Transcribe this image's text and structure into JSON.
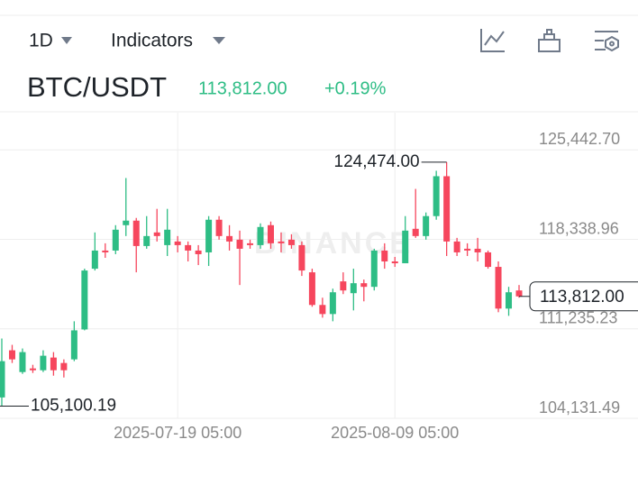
{
  "toolbar": {
    "interval": "1D",
    "indicators": "Indicators"
  },
  "chart_data": {
    "type": "candlestick",
    "title": "BTC/USDT",
    "change": "+0.19%",
    "last_price": {
      "value": 113812.0,
      "label": "113,812.00"
    },
    "watermark": "BINANCE",
    "up_color": "#2ebd85",
    "down_color": "#f6465d",
    "grid": true,
    "categories": [
      null,
      null,
      null,
      null,
      null,
      null,
      null,
      null,
      null,
      null,
      null,
      null,
      null,
      null,
      null,
      null,
      null,
      "2025-07-19 05:00",
      null,
      null,
      null,
      null,
      null,
      null,
      null,
      null,
      null,
      null,
      null,
      null,
      null,
      null,
      null,
      null,
      null,
      null,
      null,
      null,
      "2025-08-09 05:00",
      null,
      null,
      null,
      null,
      null,
      null,
      null,
      null,
      null,
      null,
      null,
      null
    ],
    "open": [
      105787,
      109531,
      107803,
      108091,
      107947,
      108955,
      108523,
      108811,
      111187,
      116011,
      117451,
      117451,
      119467,
      119827,
      117811,
      118891,
      117883,
      118171,
      117883,
      117451,
      117307,
      119899,
      118603,
      118315,
      118027,
      117883,
      119467,
      118171,
      118315,
      117883,
      115723,
      113131,
      112411,
      115003,
      114067,
      114859,
      114571,
      117451,
      116587,
      116443,
      119179,
      118603,
      120187,
      123355,
      118171,
      117595,
      117595,
      117307,
      116155,
      112843,
      114283
    ],
    "high": [
      110467,
      109963,
      109675,
      108379,
      109531,
      109387,
      108811,
      111835,
      116011,
      118891,
      118027,
      119467,
      123211,
      120043,
      120187,
      120763,
      120763,
      118603,
      118171,
      117883,
      120187,
      120187,
      119467,
      119035,
      118315,
      119611,
      119755,
      118891,
      118747,
      118171,
      116011,
      113707,
      114427,
      115723,
      116011,
      115147,
      117595,
      118027,
      116947,
      120187,
      122347,
      120475,
      123787,
      124474.0,
      118459,
      118027,
      118459,
      117451,
      116587,
      114571,
      114715
    ],
    "low": [
      105100.19,
      108523,
      107659,
      107731,
      107803,
      107515,
      107371,
      108667,
      111115,
      115867,
      116875,
      117163,
      118603,
      115723,
      117595,
      118171,
      117019,
      117307,
      116587,
      116299,
      116227,
      118315,
      117451,
      114715,
      117595,
      117595,
      117595,
      117307,
      117595,
      115435,
      112987,
      112123,
      111835,
      113995,
      112699,
      113419,
      114283,
      116011,
      116155,
      116443,
      118459,
      118315,
      119899,
      117019,
      117019,
      117019,
      116587,
      116011,
      112555,
      112267,
      113707
    ],
    "close": [
      108667,
      108811,
      109387,
      107947,
      109099,
      107947,
      107947,
      111115,
      115867,
      117451,
      117307,
      119107,
      119827,
      117811,
      118603,
      118603,
      119107,
      117883,
      117451,
      117163,
      119899,
      118603,
      118171,
      117595,
      117883,
      119323,
      118027,
      118027,
      117883,
      115867,
      113131,
      112411,
      114139,
      114283,
      114859,
      114571,
      117451,
      116587,
      116443,
      119035,
      118603,
      120187,
      123355,
      118171,
      117307,
      117451,
      117307,
      116155,
      112843,
      114139,
      113812.0
    ],
    "ylim": [
      104131.49,
      128400
    ],
    "yticks": [
      {
        "value": 104131.49,
        "label": "104,131.49"
      },
      {
        "value": 111235.23,
        "label": "111,235.23"
      },
      {
        "value": 118338.96,
        "label": "118,338.96"
      },
      {
        "value": 125442.7,
        "label": "125,442.70"
      }
    ],
    "annotations": [
      {
        "value": 124474.0,
        "label": "124,474.00"
      },
      {
        "value": 105100.19,
        "label": "105,100.19"
      }
    ]
  }
}
